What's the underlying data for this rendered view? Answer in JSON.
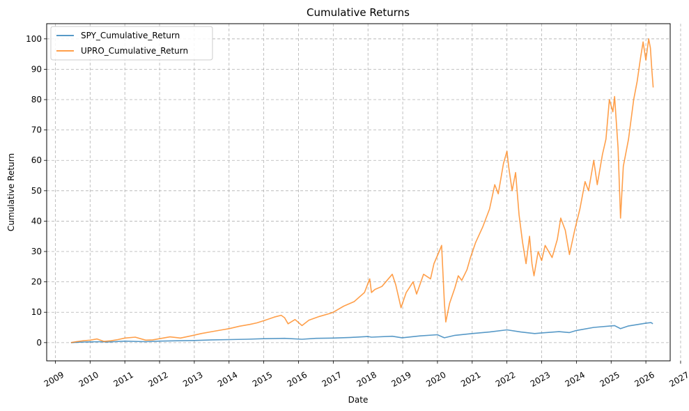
{
  "chart_data": {
    "type": "line",
    "title": "Cumulative Returns",
    "xlabel": "Date",
    "ylabel": "Cumulative Return",
    "xlim": [
      2008.75,
      2026.7
    ],
    "ylim": [
      -6,
      105
    ],
    "xticks": [
      2009,
      2010,
      2011,
      2012,
      2013,
      2014,
      2015,
      2016,
      2017,
      2018,
      2019,
      2020,
      2021,
      2022,
      2023,
      2024,
      2025,
      2026,
      2027
    ],
    "yticks": [
      0,
      10,
      20,
      30,
      40,
      50,
      60,
      70,
      80,
      90,
      100
    ],
    "grid": true,
    "legend_position": "top-left",
    "series": [
      {
        "name": "SPY_Cumulative_Return",
        "color": "#1f77b4",
        "points": [
          [
            2009.45,
            0
          ],
          [
            2009.8,
            0.2
          ],
          [
            2010.3,
            0.3
          ],
          [
            2010.5,
            0.2
          ],
          [
            2011.0,
            0.5
          ],
          [
            2011.6,
            0.3
          ],
          [
            2012.0,
            0.5
          ],
          [
            2012.5,
            0.6
          ],
          [
            2013.0,
            0.7
          ],
          [
            2013.5,
            0.9
          ],
          [
            2014.0,
            1.0
          ],
          [
            2014.5,
            1.1
          ],
          [
            2015.0,
            1.3
          ],
          [
            2015.6,
            1.4
          ],
          [
            2016.1,
            1.1
          ],
          [
            2016.5,
            1.4
          ],
          [
            2017.0,
            1.5
          ],
          [
            2017.5,
            1.7
          ],
          [
            2018.0,
            2.0
          ],
          [
            2018.1,
            1.8
          ],
          [
            2018.7,
            2.1
          ],
          [
            2018.98,
            1.6
          ],
          [
            2019.5,
            2.2
          ],
          [
            2020.0,
            2.6
          ],
          [
            2020.2,
            1.6
          ],
          [
            2020.5,
            2.4
          ],
          [
            2021.0,
            3.0
          ],
          [
            2021.5,
            3.5
          ],
          [
            2022.0,
            4.2
          ],
          [
            2022.4,
            3.5
          ],
          [
            2022.8,
            3.0
          ],
          [
            2023.0,
            3.2
          ],
          [
            2023.5,
            3.6
          ],
          [
            2023.8,
            3.3
          ],
          [
            2024.0,
            4.0
          ],
          [
            2024.5,
            5.0
          ],
          [
            2025.1,
            5.6
          ],
          [
            2025.27,
            4.6
          ],
          [
            2025.5,
            5.5
          ],
          [
            2026.0,
            6.4
          ],
          [
            2026.15,
            6.6
          ],
          [
            2026.2,
            6.2
          ]
        ]
      },
      {
        "name": "UPRO_Cumulative_Return",
        "color": "#ff7f0e",
        "points": [
          [
            2009.45,
            0
          ],
          [
            2009.6,
            0.3
          ],
          [
            2009.8,
            0.6
          ],
          [
            2010.0,
            0.8
          ],
          [
            2010.2,
            1.2
          ],
          [
            2010.4,
            0.4
          ],
          [
            2010.6,
            0.6
          ],
          [
            2010.8,
            1.0
          ],
          [
            2011.0,
            1.5
          ],
          [
            2011.3,
            1.8
          ],
          [
            2011.6,
            0.8
          ],
          [
            2011.8,
            0.9
          ],
          [
            2012.0,
            1.3
          ],
          [
            2012.3,
            1.9
          ],
          [
            2012.6,
            1.5
          ],
          [
            2012.9,
            2.2
          ],
          [
            2013.2,
            3.0
          ],
          [
            2013.5,
            3.6
          ],
          [
            2013.8,
            4.2
          ],
          [
            2014.0,
            4.6
          ],
          [
            2014.3,
            5.4
          ],
          [
            2014.6,
            6.0
          ],
          [
            2014.8,
            6.5
          ],
          [
            2015.0,
            7.2
          ],
          [
            2015.3,
            8.4
          ],
          [
            2015.5,
            9.0
          ],
          [
            2015.6,
            8.2
          ],
          [
            2015.7,
            6.2
          ],
          [
            2015.9,
            7.6
          ],
          [
            2016.1,
            5.6
          ],
          [
            2016.3,
            7.4
          ],
          [
            2016.6,
            8.6
          ],
          [
            2016.9,
            9.6
          ],
          [
            2017.0,
            10.0
          ],
          [
            2017.3,
            12.0
          ],
          [
            2017.6,
            13.5
          ],
          [
            2017.9,
            16.5
          ],
          [
            2018.05,
            21.0
          ],
          [
            2018.1,
            16.5
          ],
          [
            2018.2,
            17.5
          ],
          [
            2018.4,
            18.5
          ],
          [
            2018.7,
            22.5
          ],
          [
            2018.8,
            19.0
          ],
          [
            2018.95,
            11.5
          ],
          [
            2019.1,
            16.5
          ],
          [
            2019.3,
            20.0
          ],
          [
            2019.4,
            16.0
          ],
          [
            2019.6,
            22.5
          ],
          [
            2019.8,
            21.0
          ],
          [
            2019.9,
            26.0
          ],
          [
            2020.05,
            30.0
          ],
          [
            2020.12,
            32.0
          ],
          [
            2020.2,
            13.0
          ],
          [
            2020.24,
            6.8
          ],
          [
            2020.35,
            13.0
          ],
          [
            2020.5,
            18.0
          ],
          [
            2020.6,
            22.0
          ],
          [
            2020.7,
            20.5
          ],
          [
            2020.85,
            24.0
          ],
          [
            2020.95,
            28.0
          ],
          [
            2021.1,
            33.0
          ],
          [
            2021.3,
            38.0
          ],
          [
            2021.5,
            44.0
          ],
          [
            2021.65,
            52.0
          ],
          [
            2021.75,
            49.0
          ],
          [
            2021.9,
            59.0
          ],
          [
            2022.0,
            63.0
          ],
          [
            2022.05,
            58.0
          ],
          [
            2022.15,
            50.0
          ],
          [
            2022.25,
            56.0
          ],
          [
            2022.35,
            42.0
          ],
          [
            2022.45,
            33.0
          ],
          [
            2022.55,
            26.0
          ],
          [
            2022.65,
            35.0
          ],
          [
            2022.72,
            26.0
          ],
          [
            2022.78,
            22.0
          ],
          [
            2022.9,
            30.0
          ],
          [
            2023.0,
            27.0
          ],
          [
            2023.1,
            32.0
          ],
          [
            2023.3,
            28.0
          ],
          [
            2023.45,
            34.0
          ],
          [
            2023.55,
            41.0
          ],
          [
            2023.68,
            37.0
          ],
          [
            2023.8,
            29.0
          ],
          [
            2023.95,
            37.0
          ],
          [
            2024.1,
            44.0
          ],
          [
            2024.25,
            53.0
          ],
          [
            2024.35,
            50.0
          ],
          [
            2024.5,
            60.0
          ],
          [
            2024.6,
            52.0
          ],
          [
            2024.75,
            62.0
          ],
          [
            2024.85,
            67.0
          ],
          [
            2024.95,
            80.0
          ],
          [
            2025.05,
            76.0
          ],
          [
            2025.1,
            81.0
          ],
          [
            2025.2,
            64.0
          ],
          [
            2025.27,
            41.0
          ],
          [
            2025.35,
            58.0
          ],
          [
            2025.5,
            67.0
          ],
          [
            2025.65,
            80.0
          ],
          [
            2025.75,
            86.0
          ],
          [
            2025.85,
            94.0
          ],
          [
            2025.92,
            99.0
          ],
          [
            2026.0,
            93.0
          ],
          [
            2026.08,
            100.0
          ],
          [
            2026.13,
            97.0
          ],
          [
            2026.17,
            90.0
          ],
          [
            2026.21,
            84.0
          ]
        ]
      }
    ]
  }
}
